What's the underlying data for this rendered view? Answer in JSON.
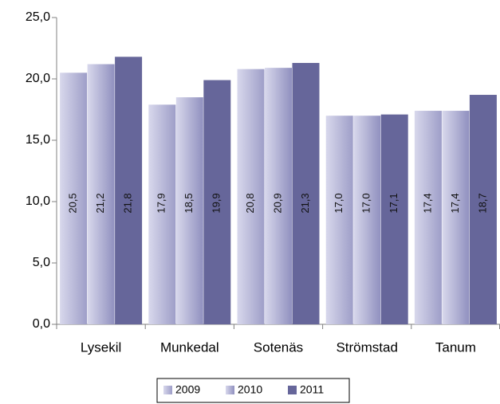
{
  "chart_data": {
    "type": "bar",
    "categories": [
      "Lysekil",
      "Munkedal",
      "Sotenäs",
      "Strömstad",
      "Tanum"
    ],
    "series": [
      {
        "name": "2009",
        "color": "#9e9ec8",
        "values": [
          20.5,
          17.9,
          20.8,
          17.0,
          17.4
        ],
        "value_labels": [
          "20,5",
          "17,9",
          "20,8",
          "17,0",
          "17,4"
        ]
      },
      {
        "name": "2010",
        "color": "#9090bf",
        "values": [
          21.2,
          18.5,
          20.9,
          17.0,
          17.4
        ],
        "value_labels": [
          "21,2",
          "18,5",
          "20,9",
          "17,0",
          "17,4"
        ]
      },
      {
        "name": "2011",
        "color": "#66669a",
        "values": [
          21.8,
          19.9,
          21.3,
          17.1,
          18.7
        ],
        "value_labels": [
          "21,8",
          "19,9",
          "21,3",
          "17,1",
          "18,7"
        ]
      }
    ],
    "ylim": [
      0,
      25
    ],
    "yticks": [
      {
        "value": 0,
        "label": "0,0"
      },
      {
        "value": 5,
        "label": "5,0"
      },
      {
        "value": 10,
        "label": "10,0"
      },
      {
        "value": 15,
        "label": "15,0"
      },
      {
        "value": 20,
        "label": "20,0"
      },
      {
        "value": 25,
        "label": "25,0"
      }
    ],
    "grid": false,
    "legend": "bottom"
  }
}
